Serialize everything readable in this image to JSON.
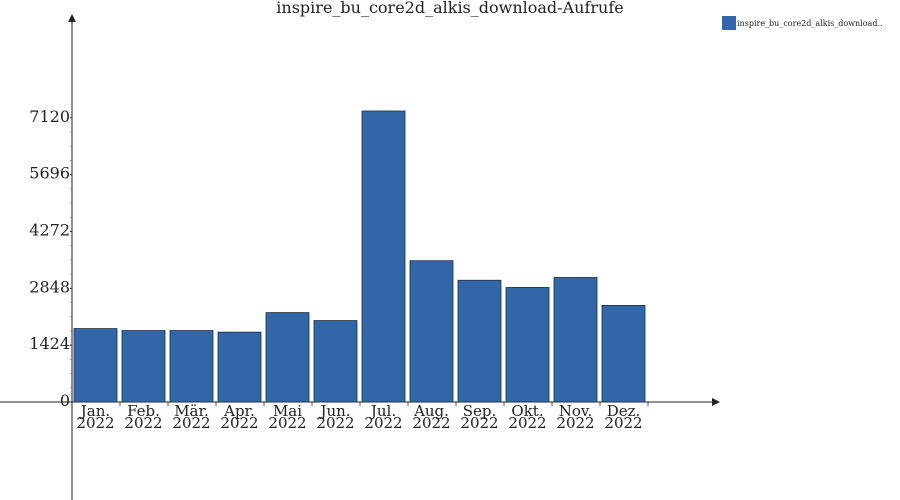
{
  "chart_data": {
    "type": "bar",
    "title": "inspire_bu_core2d_alkis_download-Aufrufe",
    "xlabel": "",
    "ylabel": "",
    "categories": [
      [
        "Jan.",
        "2022"
      ],
      [
        "Feb.",
        "2022"
      ],
      [
        "Mär.",
        "2022"
      ],
      [
        "Apr.",
        "2022"
      ],
      [
        "Mai",
        "2022"
      ],
      [
        "Jun.",
        "2022"
      ],
      [
        "Jul.",
        "2022"
      ],
      [
        "Aug.",
        "2022"
      ],
      [
        "Sep.",
        "2022"
      ],
      [
        "Okt.",
        "2022"
      ],
      [
        "Nov.",
        "2022"
      ],
      [
        "Dez.",
        "2022"
      ]
    ],
    "series": [
      {
        "name": "inspire_bu_core2d_alkis_download..",
        "color": "#3366a8",
        "values": [
          1840,
          1790,
          1790,
          1750,
          2240,
          2040,
          7290,
          3540,
          3050,
          2870,
          3120,
          2420
        ]
      }
    ],
    "yticks": [
      0,
      1424,
      2848,
      4272,
      5696,
      7120
    ],
    "ylim": [
      0,
      9500
    ],
    "grid": false,
    "legend": "top-right"
  }
}
